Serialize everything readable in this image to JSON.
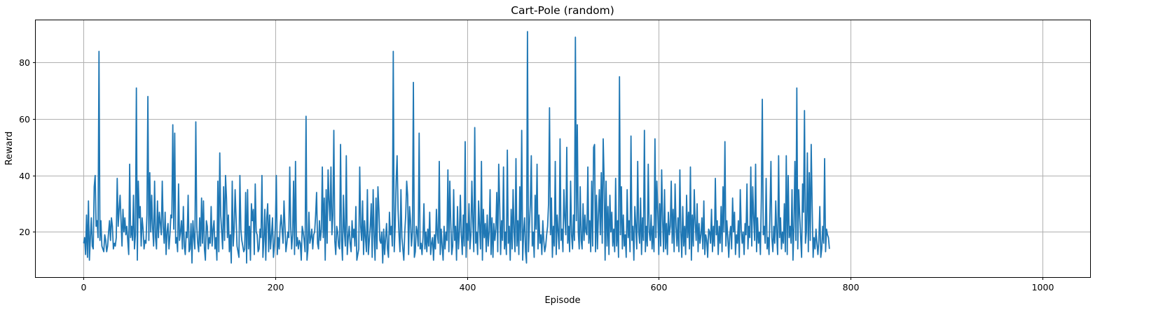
{
  "chart_data": {
    "type": "line",
    "title": "Cart-Pole (random)",
    "xlabel": "Episode",
    "ylabel": "Reward",
    "xlim": [
      -50,
      1050
    ],
    "ylim": [
      4,
      95
    ],
    "xticks": [
      0,
      200,
      400,
      600,
      800,
      1000
    ],
    "yticks": [
      20,
      40,
      60,
      80
    ],
    "xtick_labels": [
      "0",
      "200",
      "400",
      "600",
      "800",
      "1000"
    ],
    "ytick_labels": [
      "20",
      "40",
      "60",
      "80"
    ],
    "grid": true,
    "legend": "none",
    "series": [
      {
        "color": "#1f77b4",
        "x_start": 0,
        "x_step": 1,
        "values": [
          16,
          18,
          12,
          26,
          11,
          31,
          10,
          18,
          25,
          15,
          14,
          36,
          40,
          22,
          24,
          18,
          84,
          17,
          24,
          15,
          14,
          13,
          19,
          17,
          13,
          15,
          20,
          24,
          17,
          25,
          22,
          14,
          16,
          15,
          18,
          39,
          22,
          28,
          33,
          24,
          15,
          28,
          20,
          25,
          19,
          22,
          17,
          12,
          44,
          18,
          22,
          17,
          33,
          14,
          19,
          71,
          10,
          38,
          25,
          29,
          15,
          25,
          21,
          14,
          17,
          16,
          26,
          68,
          17,
          41,
          20,
          33,
          21,
          15,
          38,
          18,
          14,
          31,
          18,
          27,
          23,
          19,
          38,
          22,
          16,
          27,
          12,
          20,
          23,
          14,
          19,
          26,
          25,
          58,
          21,
          55,
          16,
          18,
          13,
          37,
          17,
          20,
          24,
          14,
          29,
          15,
          12,
          20,
          18,
          33,
          13,
          14,
          23,
          9,
          24,
          18,
          14,
          59,
          22,
          16,
          13,
          25,
          15,
          32,
          16,
          31,
          14,
          10,
          24,
          22,
          14,
          18,
          16,
          29,
          15,
          21,
          24,
          14,
          18,
          10,
          38,
          13,
          48,
          26,
          20,
          14,
          36,
          17,
          40,
          32,
          18,
          26,
          13,
          19,
          9,
          38,
          15,
          21,
          35,
          25,
          15,
          13,
          11,
          40,
          21,
          17,
          15,
          13,
          14,
          34,
          9,
          35,
          14,
          22,
          10,
          30,
          24,
          28,
          12,
          37,
          20,
          19,
          13,
          14,
          21,
          18,
          40,
          11,
          17,
          28,
          10,
          25,
          30,
          13,
          26,
          14,
          19,
          25,
          11,
          15,
          22,
          40,
          12,
          18,
          14,
          22,
          26,
          21,
          16,
          31,
          22,
          13,
          16,
          20,
          18,
          43,
          22,
          14,
          19,
          38,
          12,
          45,
          15,
          18,
          14,
          17,
          16,
          10,
          22,
          20,
          17,
          13,
          61,
          10,
          14,
          27,
          16,
          18,
          21,
          14,
          19,
          20,
          26,
          34,
          16,
          14,
          24,
          17,
          21,
          43,
          18,
          32,
          10,
          35,
          16,
          42,
          31,
          24,
          43,
          19,
          26,
          56,
          17,
          12,
          22,
          20,
          15,
          14,
          51,
          17,
          10,
          33,
          20,
          15,
          47,
          12,
          18,
          22,
          16,
          13,
          24,
          18,
          21,
          15,
          29,
          10,
          12,
          14,
          43,
          22,
          17,
          31,
          12,
          24,
          18,
          13,
          35,
          12,
          17,
          22,
          30,
          11,
          35,
          19,
          10,
          32,
          14,
          36,
          28,
          17,
          16,
          20,
          9,
          21,
          12,
          18,
          23,
          14,
          11,
          27,
          19,
          22,
          15,
          84,
          13,
          22,
          38,
          47,
          28,
          19,
          13,
          35,
          18,
          14,
          10,
          20,
          26,
          38,
          33,
          12,
          29,
          24,
          15,
          20,
          73,
          11,
          13,
          22,
          20,
          15,
          55,
          14,
          16,
          12,
          18,
          30,
          14,
          20,
          13,
          21,
          15,
          27,
          12,
          16,
          18,
          10,
          19,
          14,
          28,
          19,
          16,
          45,
          12,
          21,
          15,
          10,
          22,
          14,
          20,
          17,
          42,
          13,
          38,
          23,
          12,
          15,
          35,
          17,
          22,
          10,
          29,
          14,
          20,
          33,
          19,
          12,
          26,
          15,
          52,
          11,
          23,
          17,
          30,
          14,
          19,
          38,
          24,
          13,
          57,
          16,
          20,
          12,
          31,
          22,
          14,
          45,
          10,
          28,
          18,
          23,
          13,
          26,
          15,
          20,
          35,
          12,
          25,
          11,
          23,
          17,
          21,
          34,
          13,
          44,
          30,
          12,
          24,
          17,
          43,
          14,
          20,
          12,
          49,
          16,
          22,
          10,
          28,
          14,
          35,
          20,
          13,
          46,
          15,
          24,
          12,
          36,
          17,
          56,
          10,
          20,
          25,
          13,
          9,
          91,
          13,
          22,
          30,
          47,
          15,
          20,
          11,
          33,
          21,
          44,
          14,
          26,
          16,
          19,
          12,
          24,
          17,
          13,
          15,
          19,
          22,
          30,
          64,
          19,
          32,
          11,
          22,
          15,
          45,
          12,
          26,
          20,
          14,
          53,
          17,
          21,
          13,
          35,
          25,
          19,
          50,
          16,
          22,
          13,
          38,
          19,
          14,
          26,
          17,
          89,
          24,
          58,
          20,
          14,
          36,
          17,
          14,
          30,
          17,
          26,
          20,
          19,
          43,
          16,
          24,
          13,
          38,
          15,
          50,
          51,
          13,
          33,
          14,
          26,
          35,
          19,
          41,
          16,
          53,
          38,
          10,
          38,
          15,
          29,
          12,
          33,
          20,
          27,
          15,
          21,
          13,
          39,
          15,
          24,
          11,
          75,
          19,
          36,
          14,
          26,
          15,
          19,
          11,
          35,
          18,
          24,
          13,
          54,
          17,
          22,
          10,
          29,
          22,
          14,
          45,
          20,
          16,
          32,
          12,
          25,
          17,
          56,
          13,
          22,
          15,
          44,
          20,
          17,
          26,
          14,
          22,
          13,
          53,
          18,
          38,
          27,
          12,
          30,
          15,
          42,
          24,
          13,
          35,
          14,
          23,
          12,
          27,
          19,
          22,
          38,
          16,
          28,
          13,
          37,
          22,
          15,
          25,
          13,
          42,
          20,
          11,
          29,
          15,
          22,
          12,
          33,
          18,
          27,
          14,
          43,
          10,
          26,
          15,
          35,
          23,
          17,
          30,
          13,
          23,
          16,
          19,
          25,
          14,
          31,
          12,
          19,
          17,
          11,
          21,
          20,
          16,
          28,
          13,
          22,
          15,
          39,
          19,
          24,
          12,
          22,
          16,
          29,
          13,
          36,
          20,
          52,
          15,
          24,
          18,
          11,
          19,
          22,
          14,
          32,
          20,
          27,
          12,
          19,
          16,
          24,
          11,
          35,
          21,
          16,
          20,
          12,
          23,
          19,
          37,
          14,
          22,
          18,
          43,
          15,
          36,
          25,
          17,
          44,
          13,
          25,
          16,
          20,
          12,
          32,
          67,
          19,
          22,
          16,
          39,
          14,
          18,
          12,
          27,
          45,
          18,
          13,
          22,
          16,
          31,
          19,
          12,
          47,
          18,
          25,
          14,
          20,
          16,
          30,
          13,
          47,
          12,
          40,
          18,
          22,
          16,
          35,
          10,
          22,
          45,
          17,
          71,
          14,
          35,
          26,
          18,
          11,
          37,
          27,
          63,
          16,
          20,
          48,
          13,
          41,
          17,
          51,
          29,
          11,
          18,
          14,
          21,
          16,
          12,
          17,
          29,
          11,
          14,
          22,
          16,
          46,
          13,
          21,
          19,
          18,
          14
        ]
      }
    ]
  }
}
